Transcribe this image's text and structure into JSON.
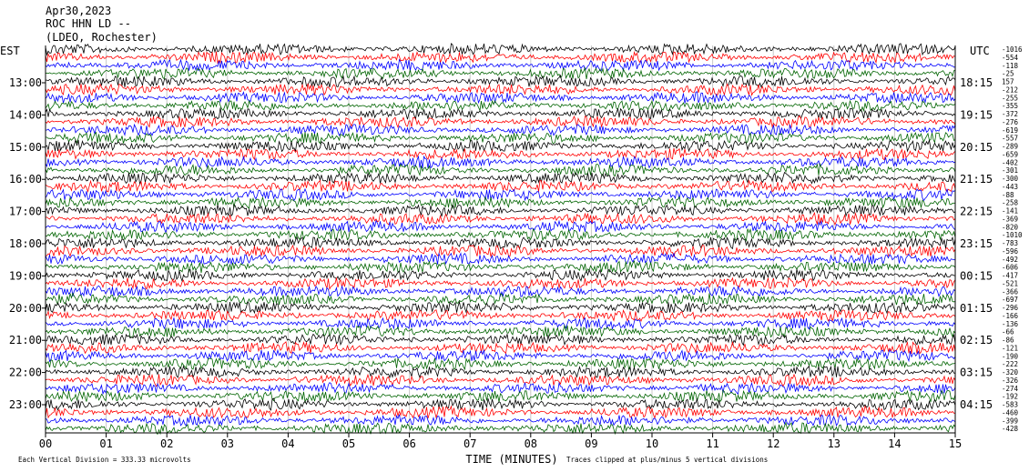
{
  "header": {
    "date": "Apr30,2023",
    "station": "ROC HHN LD --",
    "network": "(LDEO, Rochester)"
  },
  "left_zone": "EST",
  "right_zone": "UTC",
  "chart_data": {
    "type": "line",
    "title": "",
    "xlabel": "TIME (MINUTES)",
    "x_ticks": [
      "00",
      "01",
      "02",
      "03",
      "04",
      "05",
      "06",
      "07",
      "08",
      "09",
      "10",
      "11",
      "12",
      "13",
      "14",
      "15"
    ],
    "xlim": [
      0,
      15
    ],
    "left_hour_labels": [
      "13:00",
      "14:00",
      "15:00",
      "16:00",
      "17:00",
      "18:00",
      "19:00",
      "20:00",
      "21:00",
      "22:00",
      "23:00"
    ],
    "right_hour_labels": [
      "18:15",
      "19:15",
      "20:15",
      "21:15",
      "22:15",
      "23:15",
      "00:15",
      "01:15",
      "02:15",
      "03:15",
      "04:15"
    ],
    "trace_colors": [
      "#000000",
      "#ff0000",
      "#0000ff",
      "#006400"
    ],
    "trace_offsets": [
      "-1016",
      "-554",
      "-118",
      "-25",
      "157",
      "-212",
      "-255",
      "-355",
      "-372",
      "-276",
      "-619",
      "-557",
      "-289",
      "-659",
      "-402",
      "-301",
      "-300",
      "-443",
      "-88",
      "-258",
      "-141",
      "-369",
      "-820",
      "-1010",
      "-783",
      "-596",
      "-492",
      "-606",
      "-417",
      "-521",
      "-366",
      "-697",
      "-296",
      "-166",
      "-136",
      "-66",
      "-86",
      "-121",
      "-190",
      "-222",
      "-320",
      "-326",
      "-274",
      "-192",
      "-583",
      "-460",
      "-399",
      "-428"
    ],
    "notes": {
      "scale": "Each Vertical Division =  333.33 microvolts",
      "clip": "Traces clipped at plus/minus 5 vertical divisions"
    }
  }
}
